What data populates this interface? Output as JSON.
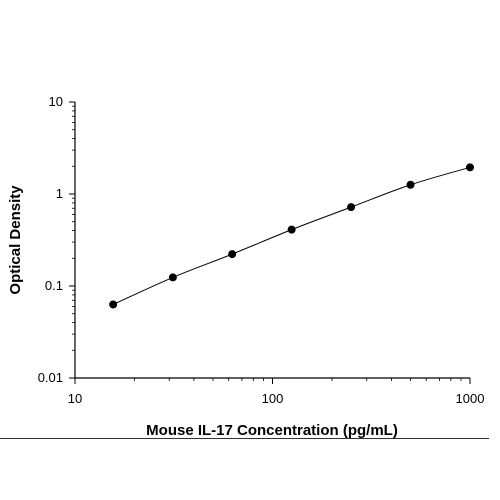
{
  "chart_data": {
    "type": "scatter",
    "title": "",
    "xlabel": "Mouse IL-17 Concentration (pg/mL)",
    "ylabel": "Optical Density",
    "x_scale": "log",
    "y_scale": "log",
    "xlim": [
      10,
      1000
    ],
    "ylim": [
      0.01,
      10
    ],
    "x_ticks": [
      10,
      100,
      1000
    ],
    "x_tick_labels": [
      "10",
      "100",
      "1000"
    ],
    "y_ticks": [
      0.01,
      0.1,
      1,
      10
    ],
    "y_tick_labels": [
      "0.01",
      "0.1",
      "1",
      "10"
    ],
    "grid": false,
    "legend": "none",
    "fit_curve": true,
    "series": [
      {
        "x": [
          15.6,
          31.3,
          62.5,
          125,
          250,
          500,
          1000
        ],
        "y": [
          0.063,
          0.124,
          0.222,
          0.41,
          0.72,
          1.26,
          1.95
        ]
      }
    ],
    "colors": {
      "marker": "#000000",
      "line": "#000000",
      "axis": "#000000"
    }
  }
}
